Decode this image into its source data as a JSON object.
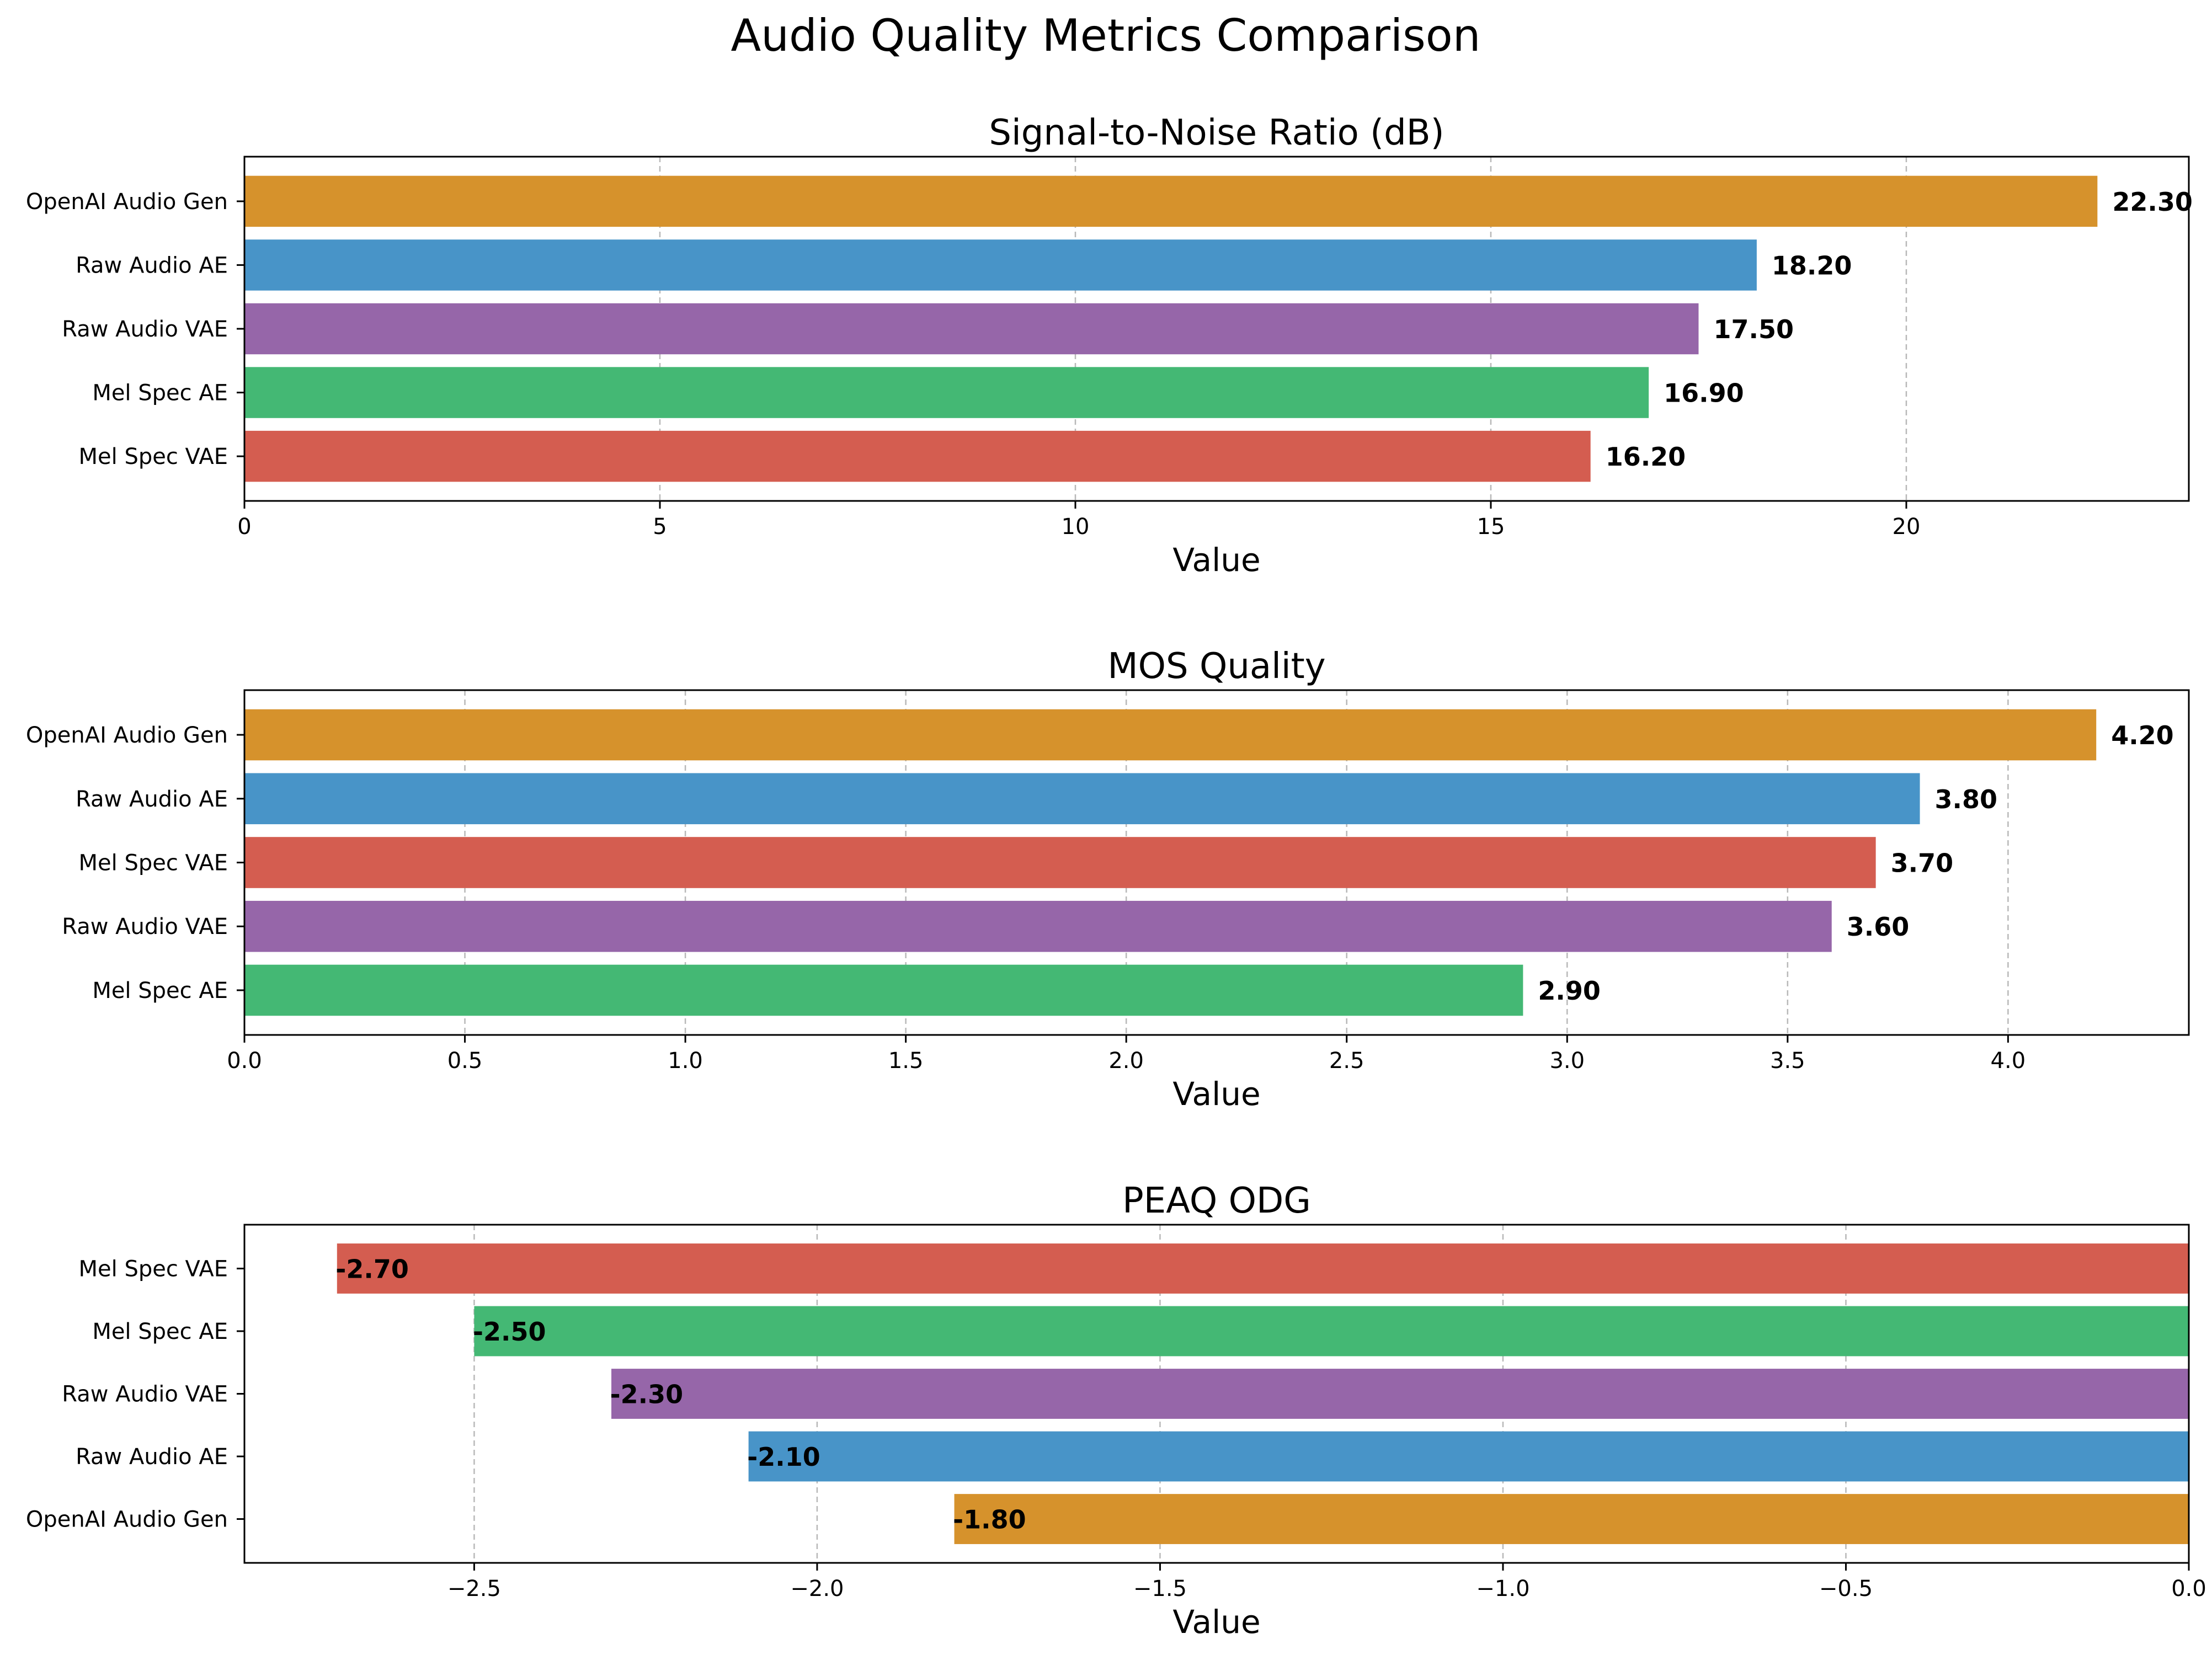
{
  "figure_title": "Audio Quality Metrics Comparison",
  "colors": {
    "OpenAI Audio Gen": "#d6922c",
    "Raw Audio AE": "#4894c8",
    "Raw Audio VAE": "#9666a9",
    "Mel Spec AE": "#44b874",
    "Mel Spec VAE": "#d45d50"
  },
  "chart_data": [
    {
      "type": "bar",
      "orientation": "horizontal",
      "title": "Signal-to-Noise Ratio (dB)",
      "xlabel": "Value",
      "ylabel": "",
      "categories": [
        "OpenAI Audio Gen",
        "Raw Audio AE",
        "Raw Audio VAE",
        "Mel Spec AE",
        "Mel Spec VAE"
      ],
      "values": [
        22.3,
        18.2,
        17.5,
        16.9,
        16.2
      ],
      "value_labels": [
        "22.30",
        "18.20",
        "17.50",
        "16.90",
        "16.20"
      ],
      "xlim": [
        0,
        23.4
      ],
      "xticks": [
        0,
        5,
        10,
        15,
        20
      ],
      "xtick_labels": [
        "0",
        "5",
        "10",
        "15",
        "20"
      ],
      "grid": "x dashed"
    },
    {
      "type": "bar",
      "orientation": "horizontal",
      "title": "MOS Quality",
      "xlabel": "Value",
      "ylabel": "",
      "categories": [
        "OpenAI Audio Gen",
        "Raw Audio AE",
        "Mel Spec VAE",
        "Raw Audio VAE",
        "Mel Spec AE"
      ],
      "values": [
        4.2,
        3.8,
        3.7,
        3.6,
        2.9
      ],
      "value_labels": [
        "4.20",
        "3.80",
        "3.70",
        "3.60",
        "2.90"
      ],
      "xlim": [
        0,
        4.41
      ],
      "xticks": [
        0,
        0.5,
        1,
        1.5,
        2,
        2.5,
        3,
        3.5,
        4
      ],
      "xtick_labels": [
        "0.0",
        "0.5",
        "1.0",
        "1.5",
        "2.0",
        "2.5",
        "3.0",
        "3.5",
        "4.0"
      ],
      "grid": "x dashed"
    },
    {
      "type": "bar",
      "orientation": "horizontal",
      "title": "PEAQ ODG",
      "xlabel": "Value",
      "ylabel": "",
      "categories": [
        "Mel Spec VAE",
        "Mel Spec AE",
        "Raw Audio VAE",
        "Raw Audio AE",
        "OpenAI Audio Gen"
      ],
      "values": [
        -2.7,
        -2.5,
        -2.3,
        -2.1,
        -1.8
      ],
      "value_labels": [
        "-2.70",
        "-2.50",
        "-2.30",
        "-2.10",
        "-1.80"
      ],
      "xlim": [
        -2.835,
        0
      ],
      "xticks": [
        -2.5,
        -2,
        -1.5,
        -1,
        -0.5,
        0
      ],
      "xtick_labels": [
        "−2.5",
        "−2.0",
        "−1.5",
        "−1.0",
        "−0.5",
        "0.0"
      ],
      "grid": "x dashed"
    }
  ]
}
